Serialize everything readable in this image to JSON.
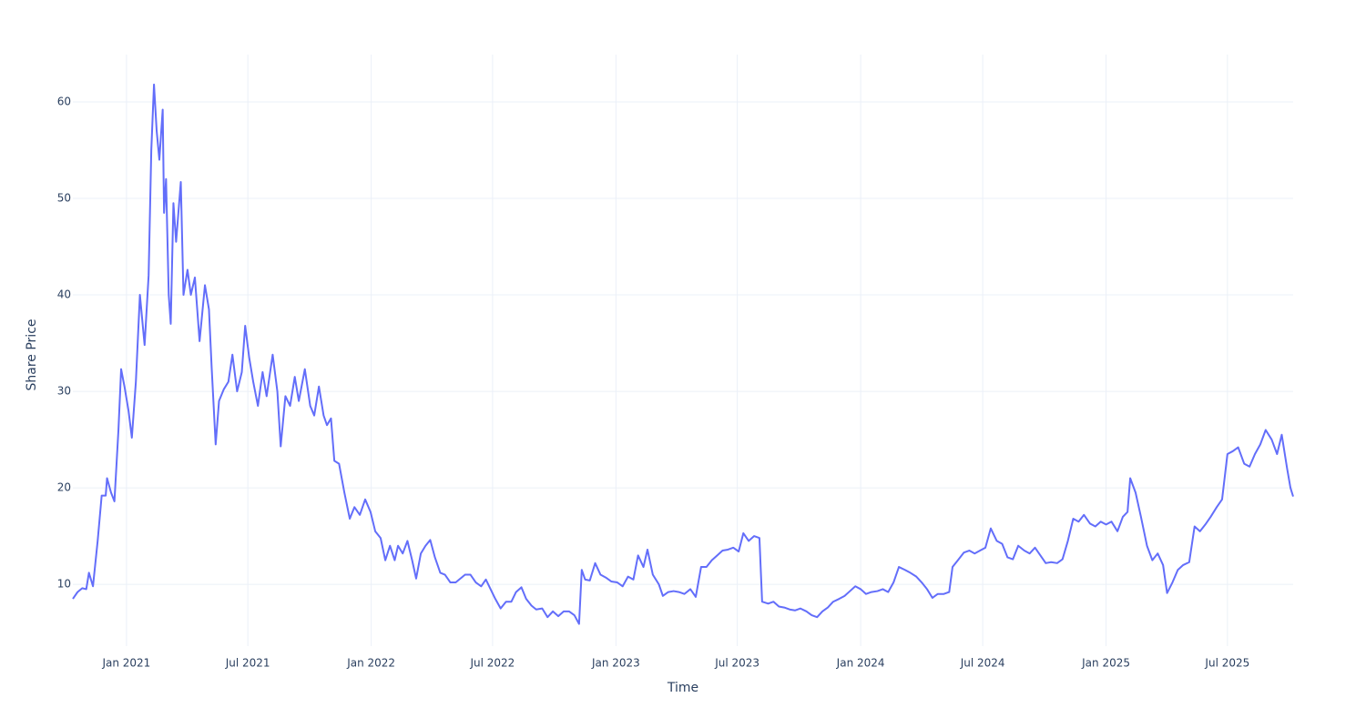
{
  "chart_data": {
    "type": "line",
    "x_label": "Time",
    "y_label": "Share Price",
    "color": "#636efa",
    "grid": true,
    "xlim": [
      "2020-10-13",
      "2025-10-07"
    ],
    "xticks": [
      {
        "value": "2021-01",
        "label": "Jan 2021"
      },
      {
        "value": "2021-07",
        "label": "Jul 2021"
      },
      {
        "value": "2022-01",
        "label": "Jan 2022"
      },
      {
        "value": "2022-07",
        "label": "Jul 2022"
      },
      {
        "value": "2023-01",
        "label": "Jan 2023"
      },
      {
        "value": "2023-07",
        "label": "Jul 2023"
      },
      {
        "value": "2024-01",
        "label": "Jan 2024"
      },
      {
        "value": "2024-07",
        "label": "Jul 2024"
      },
      {
        "value": "2025-01",
        "label": "Jan 2025"
      },
      {
        "value": "2025-07",
        "label": "Jul 2025"
      }
    ],
    "ylim": [
      3.6,
      64.9
    ],
    "yticks": [
      10,
      20,
      30,
      40,
      50,
      60
    ],
    "x": [
      "2020-10-13",
      "2020-10-20",
      "2020-10-27",
      "2020-11-02",
      "2020-11-06",
      "2020-11-12",
      "2020-11-19",
      "2020-11-25",
      "2020-12-01",
      "2020-12-03",
      "2020-12-09",
      "2020-12-14",
      "2020-12-20",
      "2020-12-24",
      "2020-12-29",
      "2021-01-04",
      "2021-01-09",
      "2021-01-15",
      "2021-01-21",
      "2021-01-28",
      "2021-02-03",
      "2021-02-07",
      "2021-02-11",
      "2021-02-15",
      "2021-02-19",
      "2021-02-24",
      "2021-02-26",
      "2021-03-01",
      "2021-03-05",
      "2021-03-08",
      "2021-03-12",
      "2021-03-16",
      "2021-03-23",
      "2021-03-27",
      "2021-04-02",
      "2021-04-07",
      "2021-04-13",
      "2021-04-20",
      "2021-04-28",
      "2021-05-04",
      "2021-05-08",
      "2021-05-14",
      "2021-05-19",
      "2021-05-26",
      "2021-06-02",
      "2021-06-08",
      "2021-06-15",
      "2021-06-22",
      "2021-06-27",
      "2021-07-03",
      "2021-07-09",
      "2021-07-16",
      "2021-07-23",
      "2021-07-29",
      "2021-08-07",
      "2021-08-14",
      "2021-08-19",
      "2021-08-26",
      "2021-09-02",
      "2021-09-09",
      "2021-09-15",
      "2021-09-24",
      "2021-10-02",
      "2021-10-08",
      "2021-10-15",
      "2021-10-22",
      "2021-10-27",
      "2021-11-02",
      "2021-11-07",
      "2021-11-14",
      "2021-11-22",
      "2021-11-30",
      "2021-12-07",
      "2021-12-15",
      "2021-12-23",
      "2021-12-31",
      "2022-01-07",
      "2022-01-15",
      "2022-01-22",
      "2022-01-29",
      "2022-02-05",
      "2022-02-10",
      "2022-02-17",
      "2022-02-24",
      "2022-03-03",
      "2022-03-09",
      "2022-03-16",
      "2022-03-23",
      "2022-03-30",
      "2022-04-06",
      "2022-04-14",
      "2022-04-21",
      "2022-04-29",
      "2022-05-07",
      "2022-05-14",
      "2022-05-21",
      "2022-05-29",
      "2022-06-06",
      "2022-06-14",
      "2022-06-21",
      "2022-06-28",
      "2022-07-05",
      "2022-07-13",
      "2022-07-21",
      "2022-07-29",
      "2022-08-05",
      "2022-08-13",
      "2022-08-20",
      "2022-08-28",
      "2022-09-04",
      "2022-09-13",
      "2022-09-21",
      "2022-09-29",
      "2022-10-07",
      "2022-10-15",
      "2022-10-23",
      "2022-10-31",
      "2022-11-07",
      "2022-11-11",
      "2022-11-16",
      "2022-11-23",
      "2022-12-01",
      "2022-12-09",
      "2022-12-17",
      "2022-12-25",
      "2023-01-03",
      "2023-01-11",
      "2023-01-19",
      "2023-01-27",
      "2023-02-03",
      "2023-02-11",
      "2023-02-17",
      "2023-02-25",
      "2023-03-06",
      "2023-03-12",
      "2023-03-20",
      "2023-03-28",
      "2023-04-05",
      "2023-04-13",
      "2023-04-22",
      "2023-04-30",
      "2023-05-08",
      "2023-05-16",
      "2023-05-24",
      "2023-06-01",
      "2023-06-09",
      "2023-06-17",
      "2023-06-25",
      "2023-07-03",
      "2023-07-10",
      "2023-07-18",
      "2023-07-26",
      "2023-08-03",
      "2023-08-07",
      "2023-08-16",
      "2023-08-24",
      "2023-09-01",
      "2023-09-09",
      "2023-09-17",
      "2023-09-25",
      "2023-10-03",
      "2023-10-12",
      "2023-10-20",
      "2023-10-28",
      "2023-11-05",
      "2023-11-13",
      "2023-11-21",
      "2023-11-30",
      "2023-12-08",
      "2023-12-16",
      "2023-12-24",
      "2024-01-01",
      "2024-01-09",
      "2024-01-17",
      "2024-01-26",
      "2024-02-03",
      "2024-02-11",
      "2024-02-19",
      "2024-02-27",
      "2024-03-07",
      "2024-03-15",
      "2024-03-24",
      "2024-04-01",
      "2024-04-09",
      "2024-04-17",
      "2024-04-25",
      "2024-05-04",
      "2024-05-12",
      "2024-05-17",
      "2024-05-25",
      "2024-06-03",
      "2024-06-11",
      "2024-06-19",
      "2024-06-27",
      "2024-07-05",
      "2024-07-13",
      "2024-07-22",
      "2024-07-30",
      "2024-08-07",
      "2024-08-15",
      "2024-08-23",
      "2024-09-01",
      "2024-09-09",
      "2024-09-17",
      "2024-09-25",
      "2024-10-03",
      "2024-10-11",
      "2024-10-20",
      "2024-10-28",
      "2024-11-05",
      "2024-11-13",
      "2024-11-21",
      "2024-11-29",
      "2024-12-08",
      "2024-12-16",
      "2024-12-24",
      "2025-01-01",
      "2025-01-09",
      "2025-01-18",
      "2025-01-26",
      "2025-02-02",
      "2025-02-06",
      "2025-02-14",
      "2025-02-22",
      "2025-03-03",
      "2025-03-11",
      "2025-03-19",
      "2025-03-27",
      "2025-04-02",
      "2025-04-10",
      "2025-04-18",
      "2025-04-26",
      "2025-05-05",
      "2025-05-13",
      "2025-05-21",
      "2025-05-29",
      "2025-06-06",
      "2025-06-15",
      "2025-06-23",
      "2025-07-01",
      "2025-07-09",
      "2025-07-17",
      "2025-07-26",
      "2025-08-03",
      "2025-08-11",
      "2025-08-19",
      "2025-08-27",
      "2025-09-05",
      "2025-09-13",
      "2025-09-20",
      "2025-09-28",
      "2025-10-03",
      "2025-10-07"
    ],
    "values": [
      8.5,
      9.2,
      9.6,
      9.5,
      11.2,
      9.8,
      14.5,
      19.2,
      19.2,
      21,
      19.5,
      18.6,
      26,
      32.3,
      30.5,
      28,
      25.2,
      31,
      40,
      34.8,
      42,
      55,
      61.8,
      57,
      54,
      59.2,
      48.5,
      52,
      40,
      37,
      49.5,
      45.5,
      51.7,
      40,
      42.6,
      40,
      41.8,
      35.2,
      41,
      38.5,
      32.5,
      24.5,
      29,
      30.2,
      31,
      33.8,
      30,
      32,
      36.8,
      33.5,
      31,
      28.5,
      32,
      29.5,
      33.8,
      30,
      24.3,
      29.5,
      28.5,
      31.5,
      29,
      32.3,
      28.5,
      27.5,
      30.5,
      27.5,
      26.5,
      27.2,
      22.8,
      22.5,
      19.5,
      16.8,
      18,
      17.2,
      18.8,
      17.5,
      15.5,
      14.8,
      12.5,
      14,
      12.5,
      14,
      13.2,
      14.5,
      12.5,
      10.6,
      13.2,
      14,
      14.6,
      12.8,
      11.2,
      11,
      10.2,
      10.2,
      10.6,
      11,
      11,
      10.2,
      9.8,
      10.5,
      9.5,
      8.5,
      7.5,
      8.2,
      8.2,
      9.2,
      9.7,
      8.5,
      7.8,
      7.4,
      7.5,
      6.6,
      7.2,
      6.7,
      7.2,
      7.2,
      6.8,
      5.9,
      11.5,
      10.5,
      10.4,
      12.2,
      11,
      10.7,
      10.3,
      10.2,
      9.8,
      10.8,
      10.5,
      13,
      11.8,
      13.6,
      11,
      10,
      8.8,
      9.2,
      9.3,
      9.2,
      9,
      9.5,
      8.7,
      11.8,
      11.8,
      12.5,
      13,
      13.5,
      13.6,
      13.8,
      13.4,
      15.3,
      14.5,
      15,
      14.8,
      8.2,
      8,
      8.2,
      7.7,
      7.6,
      7.4,
      7.3,
      7.5,
      7.2,
      6.8,
      6.6,
      7.2,
      7.6,
      8.2,
      8.5,
      8.8,
      9.3,
      9.8,
      9.5,
      9,
      9.2,
      9.3,
      9.5,
      9.2,
      10.2,
      11.8,
      11.5,
      11.2,
      10.8,
      10.2,
      9.5,
      8.6,
      9,
      9,
      9.2,
      11.8,
      12.5,
      13.3,
      13.5,
      13.2,
      13.5,
      13.8,
      15.8,
      14.5,
      14.2,
      12.8,
      12.6,
      14,
      13.5,
      13.2,
      13.8,
      13,
      12.2,
      12.3,
      12.2,
      12.6,
      14.5,
      16.8,
      16.5,
      17.2,
      16.3,
      16,
      16.5,
      16.2,
      16.5,
      15.5,
      17,
      17.5,
      21,
      19.5,
      17,
      14,
      12.5,
      13.2,
      12,
      9.1,
      10.2,
      11.5,
      12,
      12.3,
      16,
      15.5,
      16.2,
      17,
      18,
      18.8,
      23.5,
      23.8,
      24.2,
      22.5,
      22.2,
      23.5,
      24.5,
      26,
      25,
      23.5,
      25.5,
      22,
      20,
      19.1
    ]
  }
}
